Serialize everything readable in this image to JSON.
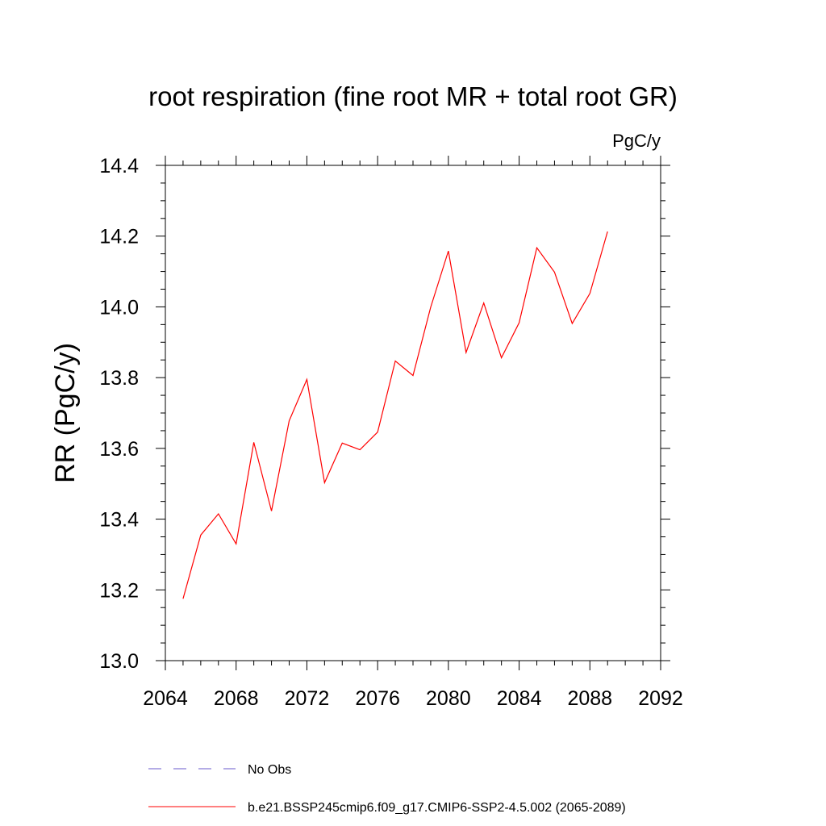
{
  "chart_data": {
    "type": "line",
    "title": "root respiration (fine root MR + total root GR)",
    "units_label": "PgC/y",
    "ylabel": "RR  (PgC/y)",
    "xlabel": "",
    "xlim": [
      2064,
      2092
    ],
    "ylim": [
      13.0,
      14.4
    ],
    "x_ticks": [
      2064,
      2068,
      2072,
      2076,
      2080,
      2084,
      2088,
      2092
    ],
    "x_tick_labels": [
      "2064",
      "2068",
      "2072",
      "2076",
      "2080",
      "2084",
      "2088",
      "2092"
    ],
    "y_ticks": [
      13.0,
      13.2,
      13.4,
      13.6,
      13.8,
      14.0,
      14.2,
      14.4
    ],
    "y_tick_labels": [
      "13.0",
      "13.2",
      "13.4",
      "13.6",
      "13.8",
      "14.0",
      "14.2",
      "14.4"
    ],
    "grid": false,
    "legend_position": "bottom",
    "series": [
      {
        "name": "No Obs",
        "color": "#6a5acd",
        "style": "dashed",
        "x": [],
        "values": []
      },
      {
        "name": "b.e21.BSSP245cmip6.f09_g17.CMIP6-SSP2-4.5.002 (2065-2089)",
        "color": "#ff0000",
        "style": "solid",
        "x": [
          2065,
          2066,
          2067,
          2068,
          2069,
          2070,
          2071,
          2072,
          2073,
          2074,
          2075,
          2076,
          2077,
          2078,
          2079,
          2080,
          2081,
          2082,
          2083,
          2084,
          2085,
          2086,
          2087,
          2088,
          2089
        ],
        "values": [
          13.175,
          13.355,
          13.415,
          13.33,
          13.617,
          13.423,
          13.678,
          13.795,
          13.503,
          13.615,
          13.596,
          13.646,
          13.847,
          13.806,
          13.999,
          14.158,
          13.871,
          14.011,
          13.856,
          13.955,
          14.167,
          14.098,
          13.953,
          14.038,
          14.213
        ]
      }
    ]
  }
}
